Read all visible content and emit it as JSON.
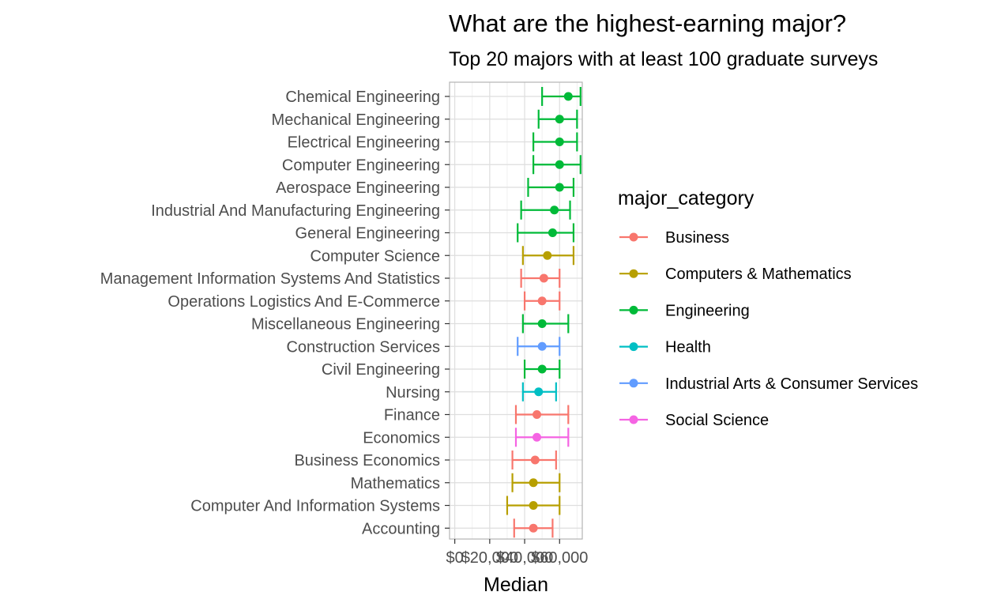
{
  "chart_data": {
    "type": "scatter",
    "title": "What are the highest-earning major?",
    "subtitle": "Top 20 majors with at least 100 graduate surveys",
    "xlabel": "Median",
    "x_ticks": [
      "$0",
      "$20,000",
      "$40,000",
      "$60,000"
    ],
    "x_tick_values": [
      0,
      20000,
      40000,
      60000
    ],
    "xlim": [
      -3000,
      73000
    ],
    "legend_title": "major_category",
    "legend_position": "right",
    "grid": true,
    "categories": [
      {
        "name": "Business",
        "color": "#F8766D"
      },
      {
        "name": "Computers & Mathematics",
        "color": "#B79F00"
      },
      {
        "name": "Engineering",
        "color": "#00BA38"
      },
      {
        "name": "Health",
        "color": "#00BFC4"
      },
      {
        "name": "Industrial Arts & Consumer Services",
        "color": "#619CFF"
      },
      {
        "name": "Social Science",
        "color": "#F564E3"
      }
    ],
    "majors": [
      {
        "major": "Chemical Engineering",
        "category": "Engineering",
        "median": 65000,
        "p25": 50000,
        "p75": 72000
      },
      {
        "major": "Mechanical Engineering",
        "category": "Engineering",
        "median": 60000,
        "p25": 48000,
        "p75": 70000
      },
      {
        "major": "Electrical Engineering",
        "category": "Engineering",
        "median": 60000,
        "p25": 45000,
        "p75": 70000
      },
      {
        "major": "Computer Engineering",
        "category": "Engineering",
        "median": 60000,
        "p25": 45000,
        "p75": 72000
      },
      {
        "major": "Aerospace Engineering",
        "category": "Engineering",
        "median": 60000,
        "p25": 42000,
        "p75": 68000
      },
      {
        "major": "Industrial And Manufacturing Engineering",
        "category": "Engineering",
        "median": 57000,
        "p25": 38000,
        "p75": 66000
      },
      {
        "major": "General Engineering",
        "category": "Engineering",
        "median": 56000,
        "p25": 36000,
        "p75": 68000
      },
      {
        "major": "Computer Science",
        "category": "Computers & Mathematics",
        "median": 53000,
        "p25": 39000,
        "p75": 68000
      },
      {
        "major": "Management Information Systems And Statistics",
        "category": "Business",
        "median": 51000,
        "p25": 38000,
        "p75": 60000
      },
      {
        "major": "Operations Logistics And E-Commerce",
        "category": "Business",
        "median": 50000,
        "p25": 40000,
        "p75": 60000
      },
      {
        "major": "Miscellaneous Engineering",
        "category": "Engineering",
        "median": 50000,
        "p25": 39000,
        "p75": 65000
      },
      {
        "major": "Construction Services",
        "category": "Industrial Arts & Consumer Services",
        "median": 50000,
        "p25": 36000,
        "p75": 60000
      },
      {
        "major": "Civil Engineering",
        "category": "Engineering",
        "median": 50000,
        "p25": 40000,
        "p75": 60000
      },
      {
        "major": "Nursing",
        "category": "Health",
        "median": 48000,
        "p25": 39000,
        "p75": 58000
      },
      {
        "major": "Finance",
        "category": "Business",
        "median": 47000,
        "p25": 35000,
        "p75": 65000
      },
      {
        "major": "Economics",
        "category": "Social Science",
        "median": 47000,
        "p25": 35000,
        "p75": 65000
      },
      {
        "major": "Business Economics",
        "category": "Business",
        "median": 46000,
        "p25": 33000,
        "p75": 58000
      },
      {
        "major": "Mathematics",
        "category": "Computers & Mathematics",
        "median": 45000,
        "p25": 33000,
        "p75": 60000
      },
      {
        "major": "Computer And Information Systems",
        "category": "Computers & Mathematics",
        "median": 45000,
        "p25": 30000,
        "p75": 60000
      },
      {
        "major": "Accounting",
        "category": "Business",
        "median": 45000,
        "p25": 34000,
        "p75": 56000
      }
    ]
  }
}
